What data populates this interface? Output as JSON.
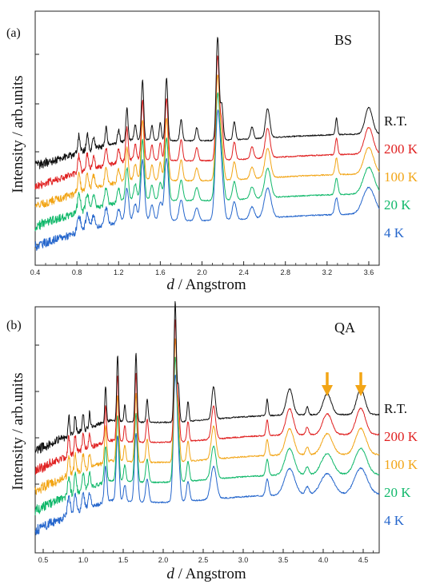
{
  "chart_data": [
    {
      "type": "line",
      "panel_label": "(a)",
      "sample_label": "BS",
      "xlabel_italic": "d",
      "xlabel_rest": " / Angstrom",
      "ylabel": "Intensity / arb.units",
      "xlim": [
        0.4,
        3.7
      ],
      "xticks": [
        "0.4",
        "0.8",
        "1.2",
        "1.6",
        "2.0",
        "2.4",
        "2.8",
        "3.2",
        "3.6"
      ],
      "peaks": [
        {
          "d": 0.82,
          "h": 0.3,
          "w": 0.01
        },
        {
          "d": 0.9,
          "h": 0.28,
          "w": 0.01
        },
        {
          "d": 0.96,
          "h": 0.22,
          "w": 0.01
        },
        {
          "d": 1.08,
          "h": 0.3,
          "w": 0.01
        },
        {
          "d": 1.2,
          "h": 0.22,
          "w": 0.01
        },
        {
          "d": 1.28,
          "h": 0.55,
          "w": 0.01
        },
        {
          "d": 1.36,
          "h": 0.25,
          "w": 0.01
        },
        {
          "d": 1.43,
          "h": 1.0,
          "w": 0.011
        },
        {
          "d": 1.52,
          "h": 0.25,
          "w": 0.01
        },
        {
          "d": 1.6,
          "h": 0.3,
          "w": 0.01
        },
        {
          "d": 1.66,
          "h": 1.05,
          "w": 0.012
        },
        {
          "d": 1.8,
          "h": 0.35,
          "w": 0.012
        },
        {
          "d": 1.95,
          "h": 0.22,
          "w": 0.012
        },
        {
          "d": 2.15,
          "h": 1.75,
          "w": 0.014
        },
        {
          "d": 2.19,
          "h": 0.6,
          "w": 0.013
        },
        {
          "d": 2.31,
          "h": 0.3,
          "w": 0.012
        },
        {
          "d": 2.48,
          "h": 0.2,
          "w": 0.014
        },
        {
          "d": 2.63,
          "h": 0.5,
          "w": 0.02
        },
        {
          "d": 3.29,
          "h": 0.28,
          "w": 0.01
        },
        {
          "d": 3.6,
          "h": 0.45,
          "w": 0.035
        }
      ],
      "series": [
        {
          "name": "R.T.",
          "color": "#111111"
        },
        {
          "name": "200 K",
          "color": "#e02020"
        },
        {
          "name": "100 K",
          "color": "#f2a516"
        },
        {
          "name": "20 K",
          "color": "#10b86a"
        },
        {
          "name": "4 K",
          "color": "#2566cc"
        }
      ]
    },
    {
      "type": "line",
      "panel_label": "(b)",
      "sample_label": "QA",
      "xlabel_italic": "d",
      "xlabel_rest": " / Angstrom",
      "ylabel": "Intensity / arb.units",
      "xlim": [
        0.4,
        4.7
      ],
      "xticks": [
        "0.5",
        "1.0",
        "1.5",
        "2.0",
        "2.5",
        "3.0",
        "3.5",
        "4.0",
        "4.5"
      ],
      "arrows_at_d": [
        4.05,
        4.47
      ],
      "arrow_color": "#f2a516",
      "peaks": [
        {
          "d": 0.82,
          "h": 0.3,
          "w": 0.01
        },
        {
          "d": 0.9,
          "h": 0.28,
          "w": 0.01
        },
        {
          "d": 1.0,
          "h": 0.25,
          "w": 0.01
        },
        {
          "d": 1.08,
          "h": 0.22,
          "w": 0.01
        },
        {
          "d": 1.28,
          "h": 0.55,
          "w": 0.01
        },
        {
          "d": 1.43,
          "h": 1.0,
          "w": 0.011
        },
        {
          "d": 1.52,
          "h": 0.25,
          "w": 0.01
        },
        {
          "d": 1.66,
          "h": 1.05,
          "w": 0.012
        },
        {
          "d": 1.8,
          "h": 0.35,
          "w": 0.012
        },
        {
          "d": 2.15,
          "h": 1.85,
          "w": 0.014
        },
        {
          "d": 2.19,
          "h": 0.55,
          "w": 0.013
        },
        {
          "d": 2.31,
          "h": 0.3,
          "w": 0.012
        },
        {
          "d": 2.63,
          "h": 0.5,
          "w": 0.022
        },
        {
          "d": 3.3,
          "h": 0.25,
          "w": 0.012
        },
        {
          "d": 3.58,
          "h": 0.4,
          "w": 0.04
        },
        {
          "d": 3.8,
          "h": 0.12,
          "w": 0.015
        },
        {
          "d": 4.05,
          "h": 0.32,
          "w": 0.05
        },
        {
          "d": 4.47,
          "h": 0.4,
          "w": 0.05
        }
      ],
      "series": [
        {
          "name": "R.T.",
          "color": "#111111"
        },
        {
          "name": "200 K",
          "color": "#e02020"
        },
        {
          "name": "100 K",
          "color": "#f2a516"
        },
        {
          "name": "20 K",
          "color": "#10b86a"
        },
        {
          "name": "4 K",
          "color": "#2566cc"
        }
      ]
    }
  ]
}
